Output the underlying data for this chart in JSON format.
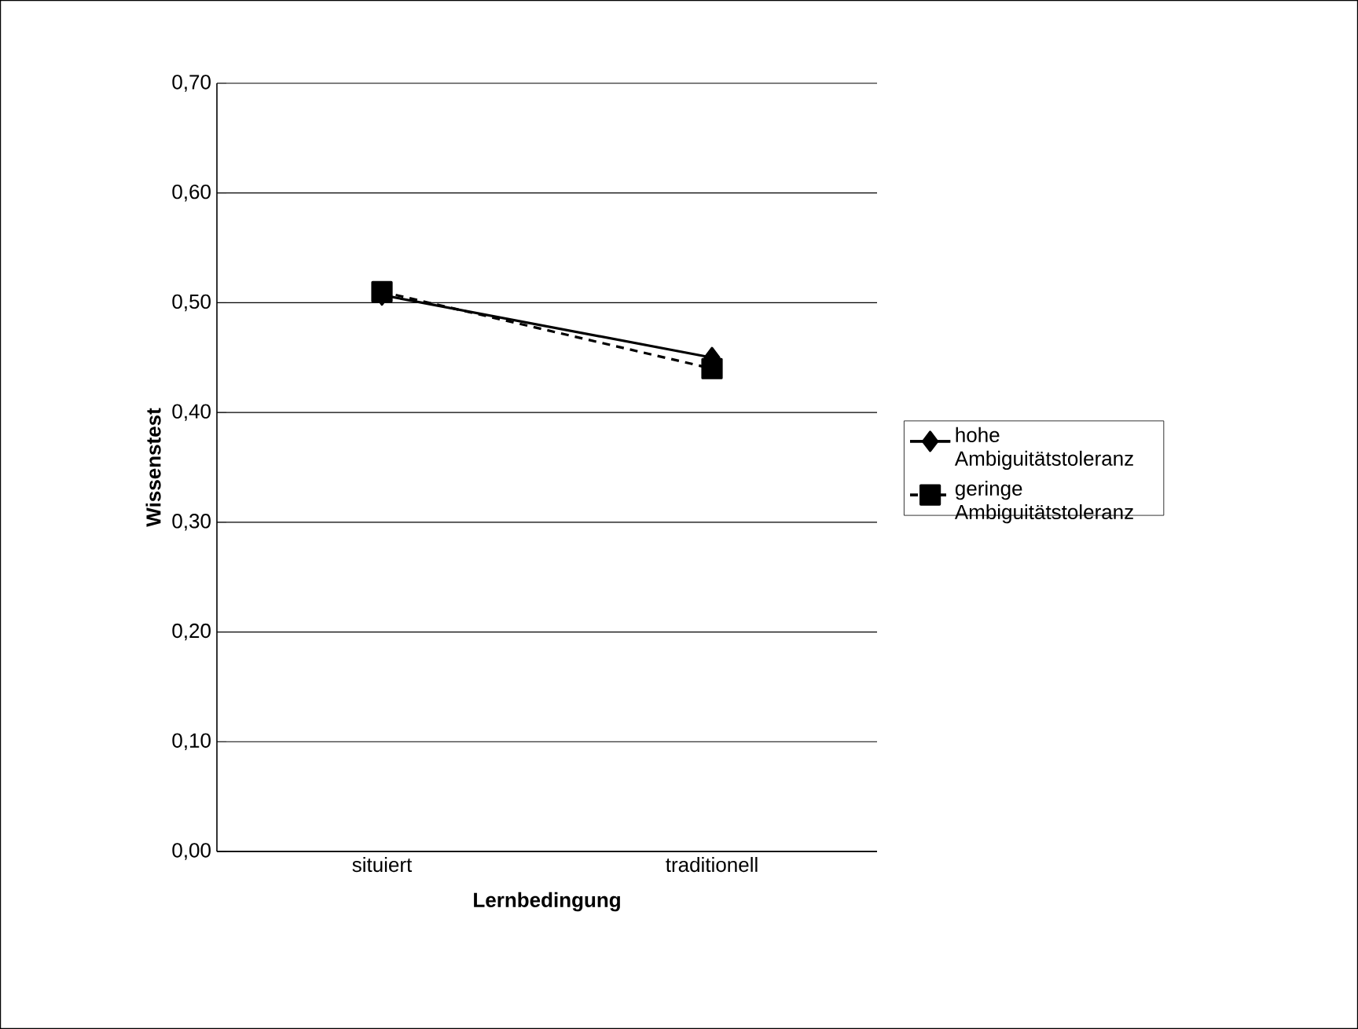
{
  "chart_data": {
    "type": "line",
    "xlabel": "Lernbedingung",
    "ylabel": "Wissenstest",
    "categories": [
      "situiert",
      "traditionell"
    ],
    "series": [
      {
        "name": "hohe Ambiguitätstoleranz",
        "color": "#000000",
        "values": [
          0.507,
          0.45
        ],
        "marker": "diamond",
        "line_style": "solid"
      },
      {
        "name": "geringe Ambiguitätstoleranz",
        "color": "#000000",
        "values": [
          0.51,
          0.44
        ],
        "marker": "square",
        "line_style": "dashed"
      }
    ],
    "ylim": [
      0,
      0.7
    ],
    "yticks": [
      {
        "value": 0,
        "label": "0,00"
      },
      {
        "value": 0.1,
        "label": "0,10"
      },
      {
        "value": 0.2,
        "label": "0,20"
      },
      {
        "value": 0.3,
        "label": "0,30"
      },
      {
        "value": 0.4,
        "label": "0,40"
      },
      {
        "value": 0.5,
        "label": "0,50"
      },
      {
        "value": 0.6,
        "label": "0,60"
      },
      {
        "value": 0.7,
        "label": "0,70"
      }
    ],
    "grid": "y",
    "legend": "right"
  }
}
